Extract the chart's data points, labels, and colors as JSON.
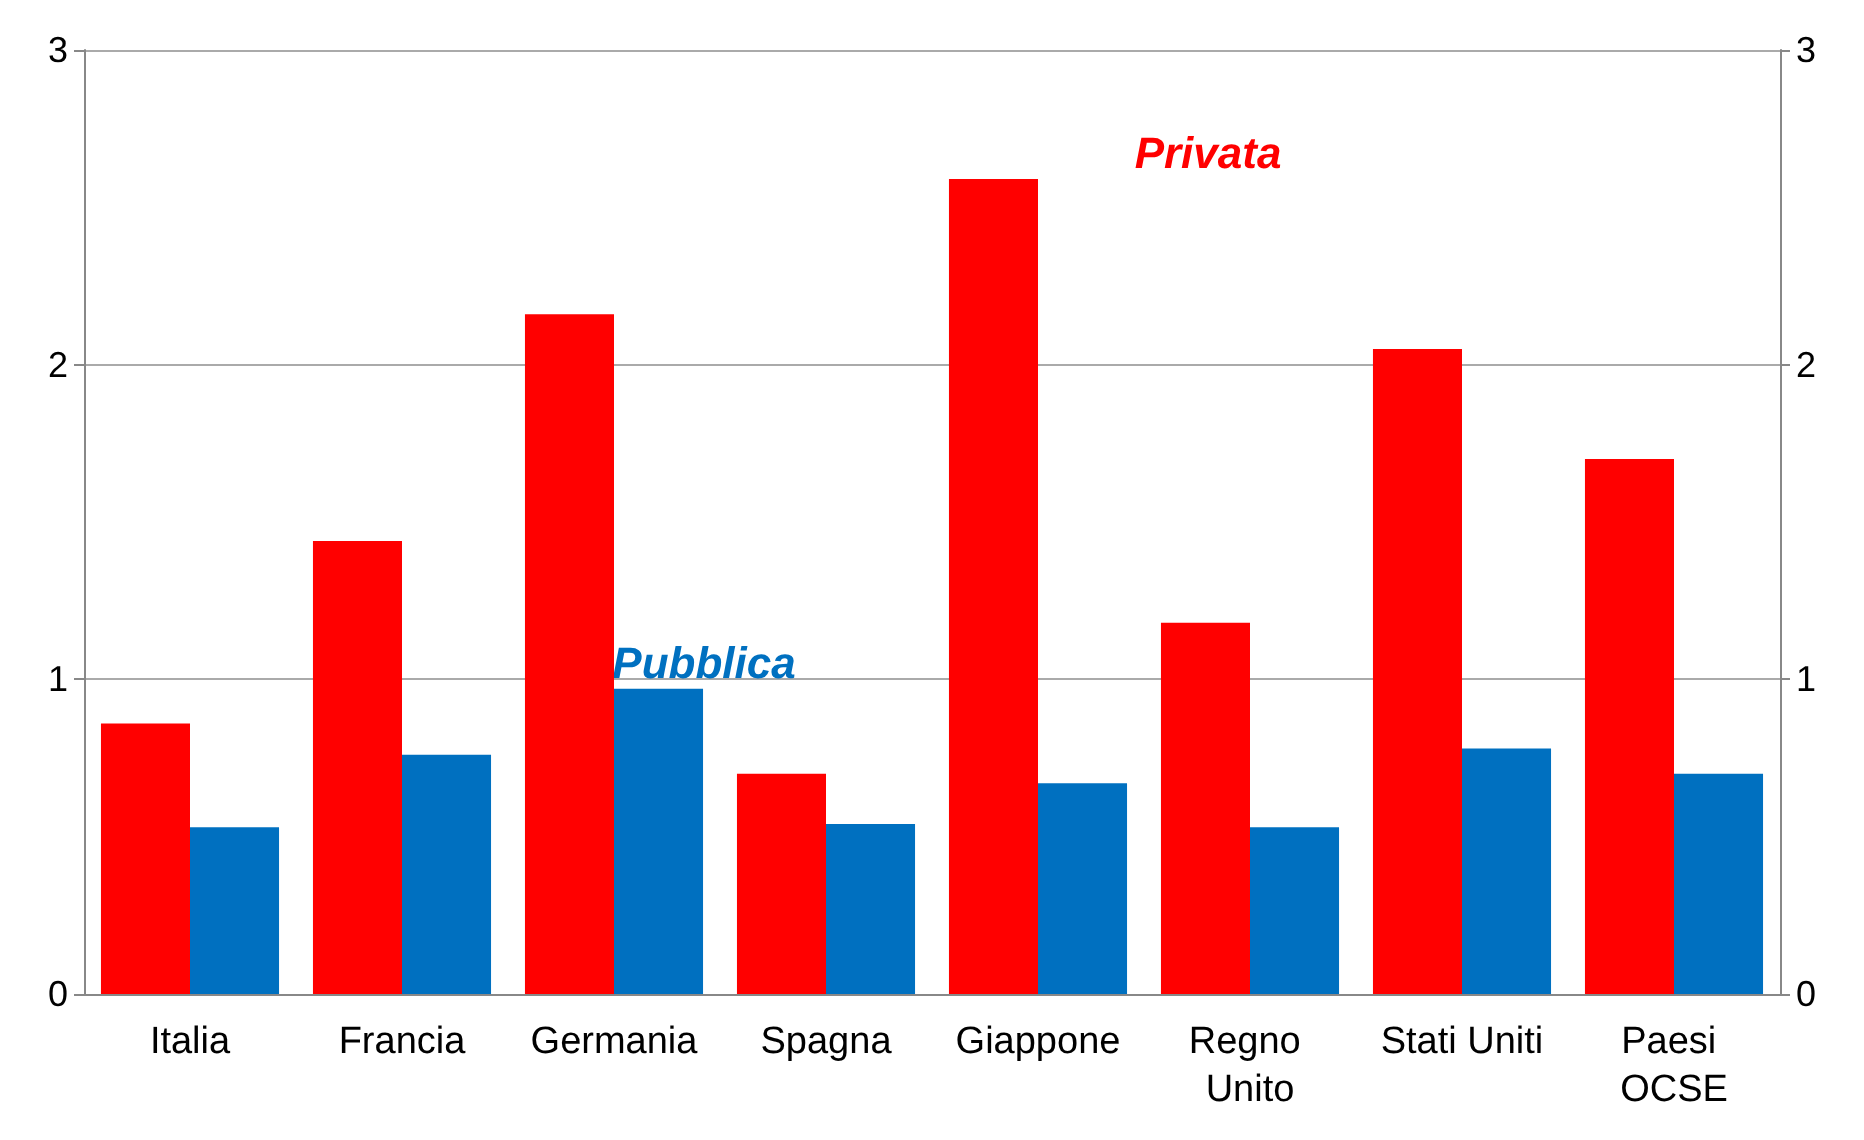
{
  "chart_data": {
    "type": "bar",
    "categories": [
      "Italia",
      "Francia",
      "Germania",
      "Spagna",
      "Giappone",
      "Regno Unito",
      "Stati Uniti",
      "Paesi OCSE"
    ],
    "series": [
      {
        "name": "Privata",
        "color": "#ff0000",
        "values": [
          0.86,
          1.44,
          2.16,
          0.7,
          2.59,
          1.18,
          2.05,
          1.7
        ]
      },
      {
        "name": "Pubblica",
        "color": "#0070c0",
        "values": [
          0.53,
          0.76,
          0.97,
          0.54,
          0.67,
          0.53,
          0.78,
          0.7
        ]
      }
    ],
    "ylim": [
      0,
      3
    ],
    "yticks": [
      0,
      1,
      2,
      3
    ],
    "y2lim": [
      0,
      3
    ],
    "y2ticks": [
      0,
      1,
      2,
      3
    ],
    "grid": "y",
    "legend": false
  }
}
